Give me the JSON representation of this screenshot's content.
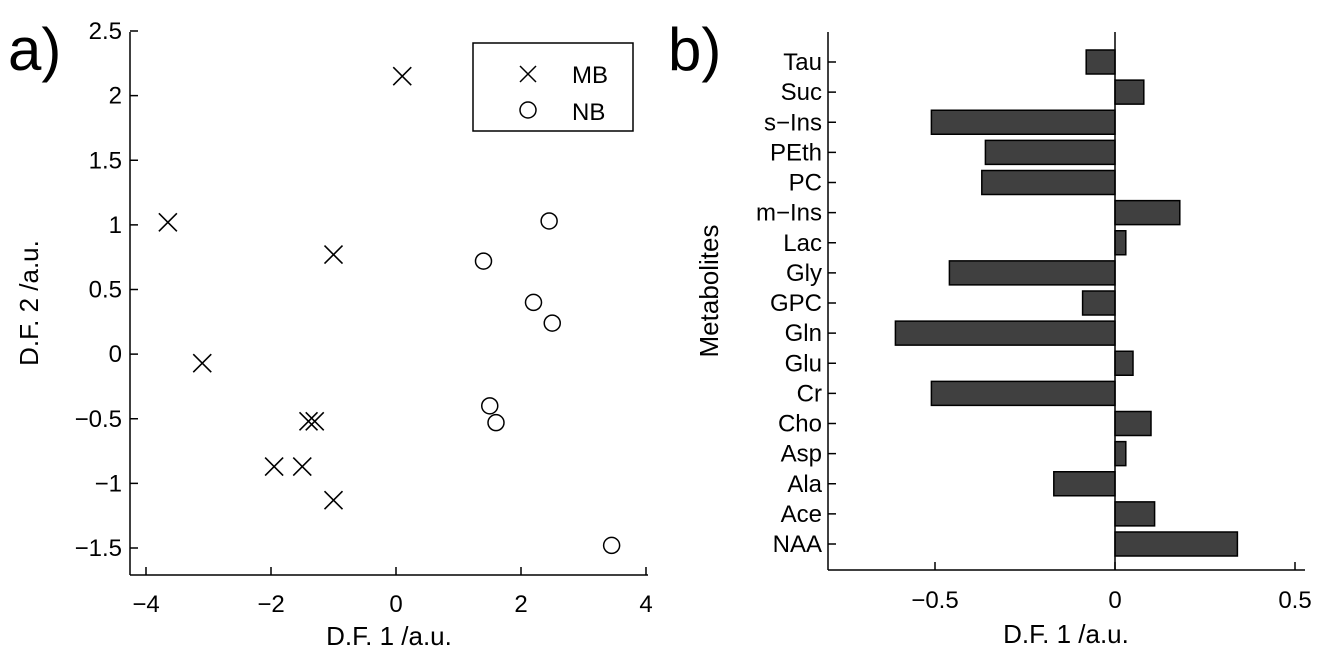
{
  "panels": {
    "a": {
      "label": "a)"
    },
    "b": {
      "label": "b)"
    }
  },
  "chart_data": [
    {
      "type": "scatter",
      "panel": "a)",
      "xlabel": "D.F. 1 /a.u.",
      "ylabel": "D.F. 2 /a.u.",
      "xlim": [
        -4,
        4
      ],
      "ylim": [
        -1.7,
        2.5
      ],
      "xticks": [
        "−4",
        "−2",
        "0",
        "2",
        "4"
      ],
      "yticks": [
        "−1.5",
        "−1",
        "−0.5",
        "0",
        "0.5",
        "1",
        "1.5",
        "2",
        "2.5"
      ],
      "legend_position": "top-right",
      "grid": false,
      "series": [
        {
          "name": "MB",
          "marker": "x",
          "x": [
            0.1,
            -3.65,
            -1.0,
            -3.1,
            -1.4,
            -1.3,
            -1.95,
            -1.5,
            -1.0
          ],
          "y": [
            2.15,
            1.02,
            0.77,
            -0.07,
            -0.52,
            -0.52,
            -0.87,
            -0.87,
            -1.13
          ]
        },
        {
          "name": "NB",
          "marker": "o",
          "x": [
            2.45,
            1.4,
            2.2,
            2.5,
            1.5,
            1.6,
            3.45
          ],
          "y": [
            1.03,
            0.72,
            0.4,
            0.24,
            -0.4,
            -0.53,
            -1.48
          ]
        }
      ]
    },
    {
      "type": "bar",
      "orientation": "horizontal",
      "panel": "b)",
      "xlabel": "D.F. 1 /a.u.",
      "ylabel": "Metabolites",
      "xlim": [
        -0.8,
        0.52
      ],
      "xticks": [
        "−0.5",
        "0",
        "0.5"
      ],
      "grid": false,
      "bar_color": "#404040",
      "categories": [
        "Tau",
        "Suc",
        "s−Ins",
        "PEth",
        "PC",
        "m−Ins",
        "Lac",
        "Gly",
        "GPC",
        "Gln",
        "Glu",
        "Cr",
        "Cho",
        "Asp",
        "Ala",
        "Ace",
        "NAA"
      ],
      "values": [
        -0.08,
        0.08,
        -0.51,
        -0.36,
        -0.37,
        0.18,
        0.03,
        -0.46,
        -0.09,
        -0.61,
        0.05,
        -0.51,
        0.1,
        0.03,
        -0.17,
        0.11,
        0.34
      ]
    }
  ]
}
